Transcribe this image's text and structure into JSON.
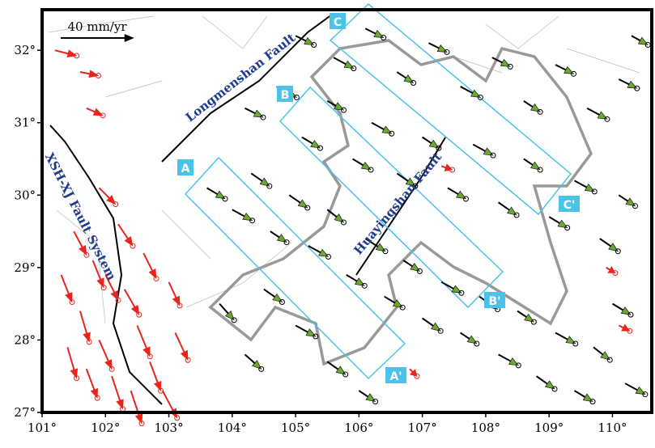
{
  "chart_data": {
    "type": "vector-map",
    "xlim": [
      101,
      110.62
    ],
    "ylim": [
      27,
      32.56
    ],
    "xticks": [
      {
        "value": 101,
        "label": "101°"
      },
      {
        "value": 102,
        "label": "102°"
      },
      {
        "value": 103,
        "label": "103°"
      },
      {
        "value": 104,
        "label": "104°"
      },
      {
        "value": 105,
        "label": "105°"
      },
      {
        "value": 106,
        "label": "106°"
      },
      {
        "value": 107,
        "label": "107°"
      },
      {
        "value": 108,
        "label": "108°"
      },
      {
        "value": 109,
        "label": "109°"
      },
      {
        "value": 110,
        "label": "110°"
      }
    ],
    "yticks": [
      {
        "value": 27,
        "label": "27°"
      },
      {
        "value": 28,
        "label": "28°"
      },
      {
        "value": 29,
        "label": "29°"
      },
      {
        "value": 30,
        "label": "30°"
      },
      {
        "value": 31,
        "label": "31°"
      },
      {
        "value": 32,
        "label": "32°"
      }
    ],
    "scale": {
      "length": 40,
      "label": "40 mm/yr"
    },
    "fault_labels": [
      "Longmenshan Fault",
      "XSH-XJ Fault System",
      "Huayingshan Fault"
    ],
    "profile_labels": [
      "A",
      "A'",
      "B",
      "B'",
      "C",
      "C'"
    ],
    "black_color": "#6aa832",
    "red_color": "#e8241c",
    "black_vectors": [
      [
        103.6,
        30.1,
        10,
        -6
      ],
      [
        104.0,
        29.8,
        11,
        -6
      ],
      [
        104.3,
        30.3,
        10,
        -7
      ],
      [
        104.6,
        29.5,
        9,
        -6
      ],
      [
        104.9,
        30.0,
        10,
        -7
      ],
      [
        105.2,
        29.3,
        11,
        -6
      ],
      [
        105.5,
        29.8,
        9,
        -7
      ],
      [
        105.8,
        28.9,
        10,
        -6
      ],
      [
        106.1,
        29.4,
        11,
        -7
      ],
      [
        106.4,
        28.6,
        10,
        -6
      ],
      [
        106.7,
        29.1,
        9,
        -6
      ],
      [
        107.0,
        28.3,
        10,
        -7
      ],
      [
        107.3,
        28.8,
        11,
        -6
      ],
      [
        107.6,
        28.1,
        9,
        -6
      ],
      [
        107.9,
        28.6,
        10,
        -7
      ],
      [
        108.2,
        27.8,
        11,
        -6
      ],
      [
        108.5,
        28.4,
        9,
        -6
      ],
      [
        108.8,
        27.5,
        10,
        -7
      ],
      [
        109.1,
        28.1,
        11,
        -6
      ],
      [
        109.4,
        27.3,
        10,
        -6
      ],
      [
        109.7,
        27.9,
        9,
        -7
      ],
      [
        110.0,
        28.5,
        10,
        -6
      ],
      [
        110.2,
        27.4,
        11,
        -6
      ],
      [
        104.2,
        31.2,
        10,
        -5
      ],
      [
        104.7,
        31.5,
        11,
        -6
      ],
      [
        105.1,
        30.8,
        10,
        -6
      ],
      [
        105.5,
        31.3,
        9,
        -5
      ],
      [
        105.9,
        30.5,
        10,
        -6
      ],
      [
        106.2,
        31.0,
        11,
        -6
      ],
      [
        106.6,
        30.3,
        10,
        -7
      ],
      [
        107.0,
        30.8,
        9,
        -6
      ],
      [
        107.4,
        30.1,
        10,
        -6
      ],
      [
        107.8,
        30.7,
        11,
        -6
      ],
      [
        108.2,
        29.9,
        10,
        -7
      ],
      [
        108.6,
        30.5,
        9,
        -6
      ],
      [
        109.0,
        29.7,
        10,
        -6
      ],
      [
        109.4,
        30.2,
        11,
        -6
      ],
      [
        109.8,
        29.4,
        10,
        -7
      ],
      [
        110.1,
        30.0,
        9,
        -6
      ],
      [
        105.0,
        32.2,
        10,
        -5
      ],
      [
        105.6,
        31.9,
        11,
        -6
      ],
      [
        106.1,
        32.3,
        10,
        -5
      ],
      [
        106.6,
        31.7,
        9,
        -6
      ],
      [
        107.1,
        32.1,
        10,
        -5
      ],
      [
        107.6,
        31.5,
        11,
        -6
      ],
      [
        108.1,
        31.9,
        10,
        -5
      ],
      [
        108.6,
        31.3,
        9,
        -6
      ],
      [
        109.1,
        31.8,
        10,
        -5
      ],
      [
        109.6,
        31.2,
        11,
        -6
      ],
      [
        110.1,
        31.6,
        10,
        -5
      ],
      [
        110.3,
        32.2,
        9,
        -5
      ],
      [
        104.5,
        28.7,
        10,
        -7
      ],
      [
        105.0,
        28.2,
        11,
        -6
      ],
      [
        105.5,
        27.7,
        10,
        -7
      ],
      [
        106.0,
        27.3,
        9,
        -6
      ],
      [
        103.8,
        28.5,
        8,
        -9
      ],
      [
        104.2,
        27.8,
        9,
        -8
      ]
    ],
    "red_vectors": [
      [
        101.3,
        28.9,
        6,
        -15
      ],
      [
        101.6,
        28.4,
        5,
        -17
      ],
      [
        101.9,
        28.0,
        7,
        -16
      ],
      [
        102.1,
        27.5,
        6,
        -18
      ],
      [
        102.3,
        28.7,
        8,
        -14
      ],
      [
        102.5,
        28.2,
        7,
        -17
      ],
      [
        102.7,
        27.7,
        6,
        -16
      ],
      [
        102.9,
        27.3,
        8,
        -15
      ],
      [
        101.5,
        29.5,
        7,
        -13
      ],
      [
        101.8,
        29.1,
        6,
        -15
      ],
      [
        102.2,
        29.6,
        8,
        -12
      ],
      [
        102.6,
        29.2,
        7,
        -14
      ],
      [
        103.0,
        28.8,
        6,
        -13
      ],
      [
        103.1,
        28.1,
        7,
        -15
      ],
      [
        101.7,
        27.6,
        6,
        -16
      ],
      [
        101.4,
        27.9,
        5,
        -17
      ],
      [
        102.0,
        28.9,
        7,
        -14
      ],
      [
        102.4,
        27.3,
        6,
        -18
      ],
      [
        101.9,
        30.1,
        9,
        -9
      ],
      [
        101.2,
        32.0,
        12,
        -3
      ],
      [
        101.6,
        31.7,
        10,
        -2
      ],
      [
        101.7,
        31.2,
        9,
        -4
      ],
      [
        107.3,
        30.4,
        6,
        -2
      ],
      [
        109.9,
        29.0,
        5,
        -3
      ],
      [
        110.1,
        28.2,
        6,
        -3
      ],
      [
        106.8,
        27.6,
        4,
        -4
      ]
    ]
  }
}
